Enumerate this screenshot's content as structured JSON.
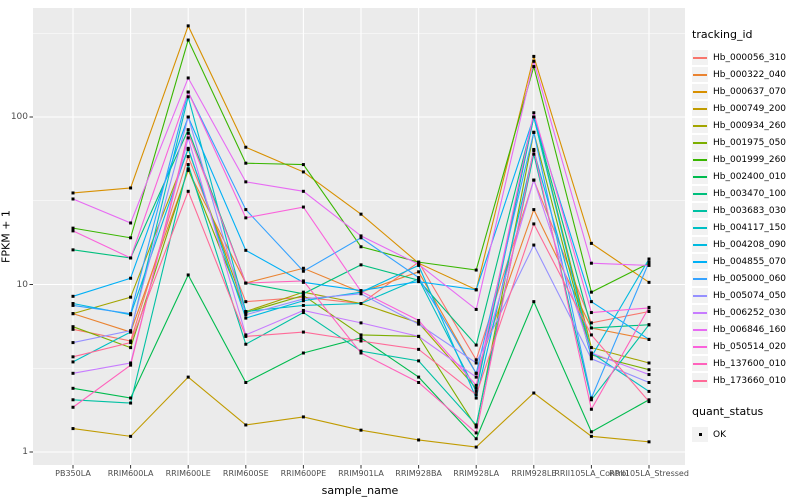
{
  "chart_data": {
    "type": "line",
    "xlabel": "sample_name",
    "ylabel": "FPKM + 1",
    "y_scale": "log10",
    "ylim": [
      0.87,
      415
    ],
    "grid": "major-and-minor",
    "legend_position": "right",
    "y_ticks": [
      {
        "label": "1",
        "value": 1
      },
      {
        "label": "10",
        "value": 10
      },
      {
        "label": "100",
        "value": 100
      }
    ],
    "y_minor": [
      3.162,
      31.62,
      316.2
    ],
    "categories": [
      "PB350LA",
      "RRIM600LA",
      "RRIM600LE",
      "RRIM600SE",
      "RRIM600PE",
      "RRIM901LA",
      "RRIM928BA",
      "RRIM928LA",
      "RRIM928LE",
      "RRII105LA_Control",
      "RRII105LA_Stressed"
    ],
    "panel_bg": "#EBEBEB",
    "grid_color": "#FFFFFF",
    "point_color": "#000000",
    "legend": {
      "tracking_title": "tracking_id",
      "quant_title": "quant_status",
      "quant_items": [
        {
          "label": "OK"
        }
      ]
    },
    "series": [
      {
        "name": "Hb_000056_310",
        "color": "#F8766D",
        "values": [
          5.4,
          4.6,
          58,
          7.9,
          8.4,
          7.7,
          13.6,
          3.55,
          42,
          5.9,
          6.9
        ]
      },
      {
        "name": "Hb_000322_040",
        "color": "#EA8331",
        "values": [
          6.7,
          5.2,
          48,
          10.2,
          12.5,
          9.0,
          11.9,
          2.95,
          28,
          5.5,
          4.7
        ]
      },
      {
        "name": "Hb_000637_070",
        "color": "#D89000",
        "values": [
          35.2,
          37.7,
          350,
          66,
          47,
          26.3,
          13.4,
          9.3,
          230,
          17.6,
          10.3
        ]
      },
      {
        "name": "Hb_000749_200",
        "color": "#C09B00",
        "values": [
          1.38,
          1.24,
          2.8,
          1.45,
          1.62,
          1.35,
          1.18,
          1.07,
          2.25,
          1.24,
          1.15
        ]
      },
      {
        "name": "Hb_000934_260",
        "color": "#A3A500",
        "values": [
          6.7,
          8.4,
          64,
          6.9,
          9.0,
          7.7,
          5.9,
          2.4,
          100,
          4.2,
          3.4
        ]
      },
      {
        "name": "Hb_001975_050",
        "color": "#7CAE00",
        "values": [
          5.6,
          4.2,
          49,
          6.8,
          8.6,
          5.0,
          4.9,
          1.41,
          81,
          3.8,
          3.1
        ]
      },
      {
        "name": "Hb_001999_260",
        "color": "#39B600",
        "values": [
          21.7,
          19,
          288,
          53,
          52,
          16.8,
          13.6,
          12.2,
          200,
          9.0,
          13.4
        ]
      },
      {
        "name": "Hb_002400_010",
        "color": "#00BB4E",
        "values": [
          2.4,
          2.1,
          11.4,
          2.6,
          3.9,
          4.8,
          2.8,
          1.2,
          7.9,
          1.32,
          2.05
        ]
      },
      {
        "name": "Hb_003470_100",
        "color": "#00BF7D",
        "values": [
          16.1,
          14.4,
          84,
          10.2,
          8.8,
          13.1,
          10.6,
          4.35,
          100,
          5.5,
          5.75
        ]
      },
      {
        "name": "Hb_003683_030",
        "color": "#00C1A3",
        "values": [
          2.05,
          1.96,
          52,
          4.4,
          6.8,
          4.0,
          3.5,
          1.45,
          60,
          2.05,
          5.75
        ]
      },
      {
        "name": "Hb_004117_150",
        "color": "#00BFC4",
        "values": [
          3.45,
          5.2,
          132,
          6.9,
          7.5,
          7.7,
          10.8,
          2.3,
          100,
          3.9,
          2.3
        ]
      },
      {
        "name": "Hb_004208_090",
        "color": "#00BAE0",
        "values": [
          7.7,
          6.6,
          65,
          6.3,
          8.0,
          9.0,
          13.0,
          2.1,
          63,
          3.7,
          14.2
        ]
      },
      {
        "name": "Hb_004855_070",
        "color": "#00B0F6",
        "values": [
          8.5,
          10.9,
          100,
          16,
          10.3,
          9.2,
          10.4,
          9.3,
          100,
          7.9,
          4.7
        ]
      },
      {
        "name": "Hb_005000_060",
        "color": "#35A2FF",
        "values": [
          7.5,
          6.7,
          141,
          28,
          12.0,
          19,
          11.0,
          2.95,
          81,
          2.1,
          13.6
        ]
      },
      {
        "name": "Hb_005074_050",
        "color": "#9590FF",
        "values": [
          4.5,
          5.3,
          100,
          6.6,
          8.2,
          8.8,
          5.8,
          3.4,
          17.2,
          3.6,
          2.6
        ]
      },
      {
        "name": "Hb_006252_030",
        "color": "#C77CFF",
        "values": [
          2.95,
          3.4,
          75,
          5.0,
          7.0,
          5.9,
          4.9,
          2.8,
          42,
          3.9,
          2.9
        ]
      },
      {
        "name": "Hb_006846_160",
        "color": "#E76BF3",
        "values": [
          32.4,
          23.3,
          171,
          41,
          36,
          19.5,
          13.2,
          7.1,
          215,
          13.4,
          13.0
        ]
      },
      {
        "name": "Hb_050514_020",
        "color": "#FA62DB",
        "values": [
          20.9,
          14.4,
          141,
          25,
          29,
          9.1,
          6.1,
          2.5,
          106,
          6.8,
          7.25
        ]
      },
      {
        "name": "Hb_137600_010",
        "color": "#FF62BC",
        "values": [
          1.85,
          3.3,
          80,
          10.2,
          10.5,
          3.9,
          2.6,
          1.3,
          64,
          1.8,
          7.3
        ]
      },
      {
        "name": "Hb_173660_010",
        "color": "#FF6A98",
        "values": [
          3.7,
          4.5,
          36,
          4.9,
          5.2,
          4.6,
          4.1,
          2.2,
          23,
          5.0,
          2.0
        ]
      }
    ]
  }
}
